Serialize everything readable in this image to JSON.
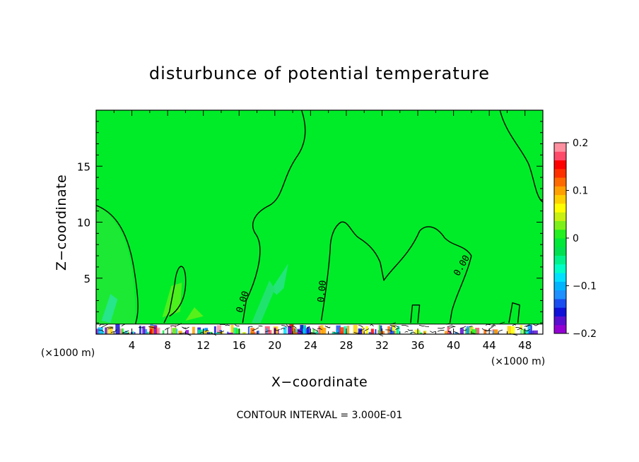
{
  "chart_data": {
    "type": "heatmap",
    "title": "disturbunce of potential temperature",
    "xlabel": "X−coordinate",
    "ylabel": "Z−coordinate",
    "x_unit": "(×1000 m)",
    "x_unit_right": "(×1000 m)",
    "xlim": [
      0,
      50
    ],
    "ylim": [
      0,
      20
    ],
    "x_ticks": [
      4,
      8,
      12,
      16,
      20,
      24,
      28,
      32,
      36,
      40,
      44,
      48
    ],
    "y_ticks": [
      5,
      10,
      15
    ],
    "colorbar": {
      "min": -0.2,
      "max": 0.2,
      "tick_values": [
        0.2,
        0.1,
        0,
        -0.1,
        -0.2
      ],
      "tick_labels": [
        "0.2",
        "0.1",
        "0",
        "−0.1",
        "−0.2"
      ],
      "colors": [
        "#9400d3",
        "#5a0fd0",
        "#1010d8",
        "#1a4ef0",
        "#1e90ff",
        "#00b4ff",
        "#00e0ff",
        "#00ffc8",
        "#00f28c",
        "#00e050",
        "#00e838",
        "#22f020",
        "#7cf018",
        "#c8f010",
        "#ffff00",
        "#ffd000",
        "#ff9f00",
        "#ff6a00",
        "#ff3000",
        "#ff0000",
        "#ff4a6a",
        "#ff90a0"
      ]
    },
    "contour_labels": [
      "0.00",
      "0.00",
      "0.00"
    ],
    "field_background": "#00ec28",
    "annotation": "CONTOUR INTERVAL = 3.000E-01",
    "grid": false
  }
}
